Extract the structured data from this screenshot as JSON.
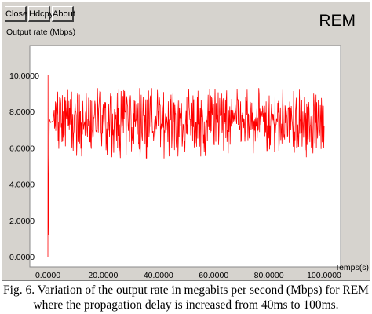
{
  "toolbar": {
    "close_label": "Close",
    "hdcpy_label": "Hdcpy",
    "about_label": "About"
  },
  "app_title": "REM",
  "chart_data": {
    "type": "line",
    "ylabel": "Output rate (Mbps)",
    "xlabel": "Temps(s)",
    "xlim": [
      0,
      100
    ],
    "ylim": [
      0,
      10.5
    ],
    "x_ticks": [
      "0.0000",
      "20.0000",
      "40.0000",
      "60.0000",
      "80.0000",
      "100.0000"
    ],
    "y_ticks": [
      "0.0000",
      "2.0000",
      "4.0000",
      "6.0000",
      "8.0000",
      "10.0000"
    ],
    "grid": false,
    "series_color": "#ff0000",
    "series": [
      {
        "points": [
          [
            0,
            0
          ],
          [
            0.05,
            10.0
          ],
          [
            0.15,
            1.2
          ],
          [
            0.3,
            4.1
          ],
          [
            0.5,
            7.6
          ],
          [
            1.0,
            7.4
          ],
          [
            2.0,
            7.5
          ]
        ],
        "noise_band": {
          "x_start": 2,
          "x_end": 100,
          "mean": 7.5,
          "min": 5.4,
          "max": 9.3
        }
      }
    ]
  },
  "caption": {
    "line1": "Fig. 6.  Variation of the output rate in megabits per second (Mbps) for REM",
    "line2": "where the propagation delay is increased from 40ms to 100ms."
  }
}
